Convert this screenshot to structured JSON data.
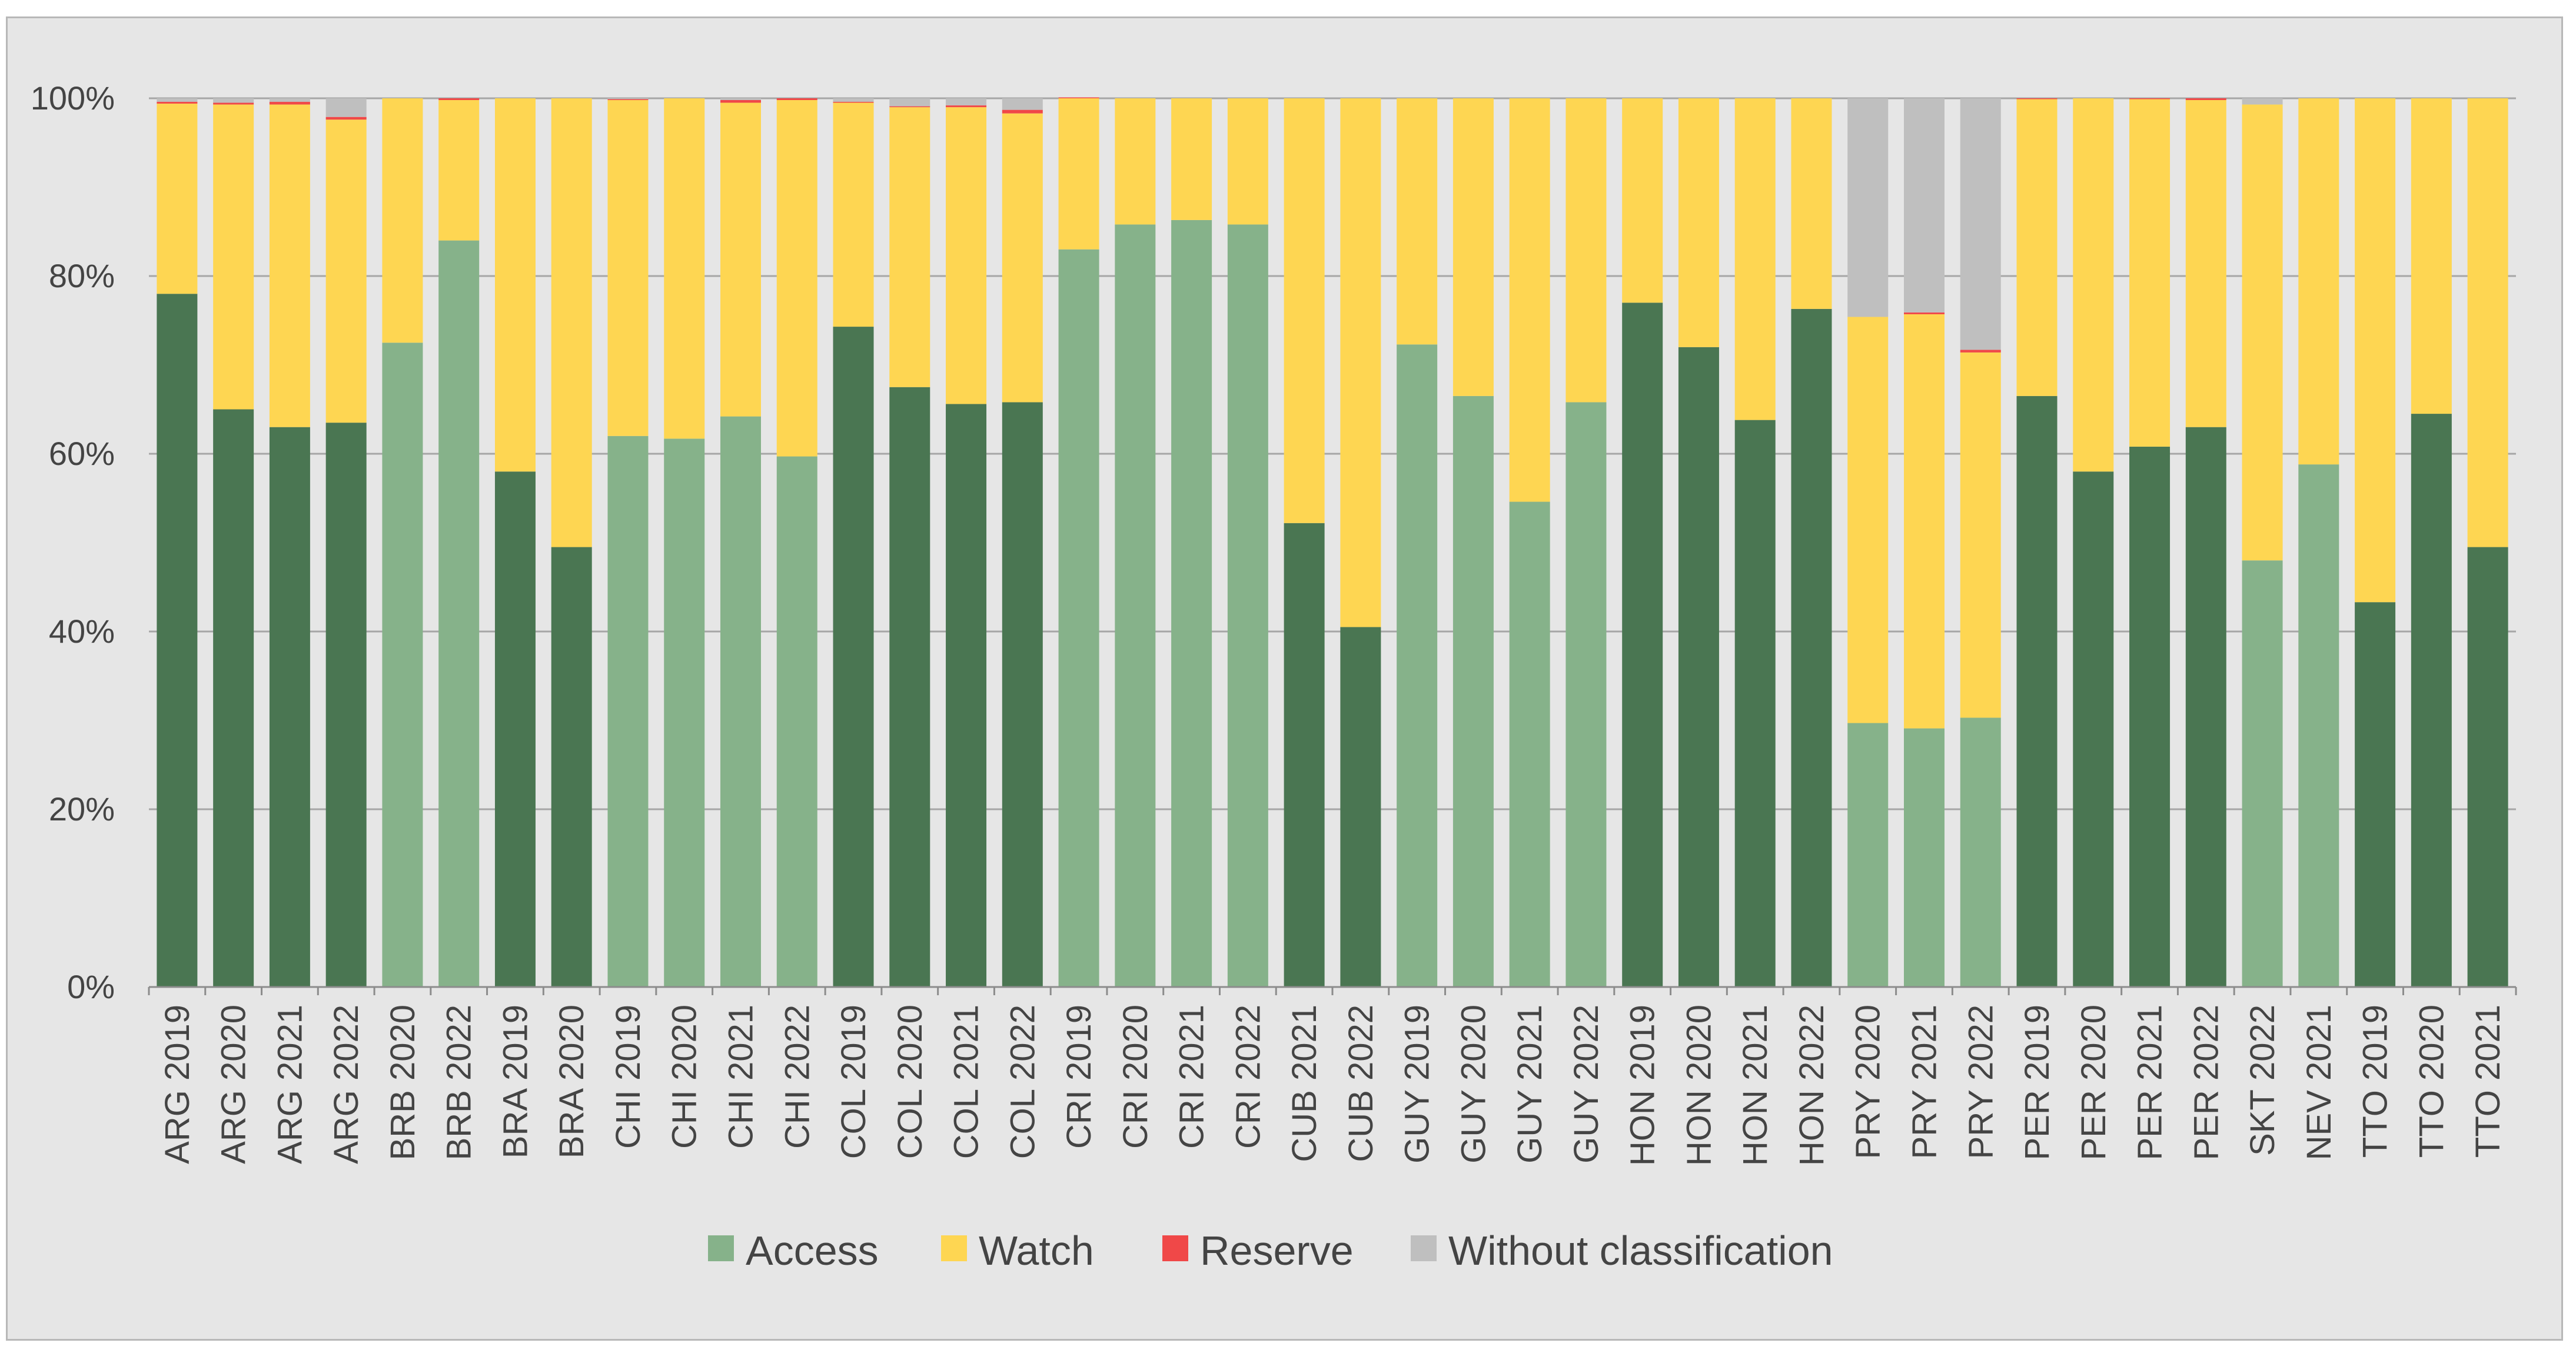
{
  "chart_data": {
    "type": "bar",
    "stacked": true,
    "percent_scale": true,
    "title": "",
    "xlabel": "",
    "ylabel": "",
    "ylim": [
      0,
      100
    ],
    "yticks": [
      "0%",
      "20%",
      "40%",
      "60%",
      "80%",
      "100%"
    ],
    "ytick_values": [
      0,
      20,
      40,
      60,
      80,
      100
    ],
    "grid": true,
    "legend_position": "bottom",
    "categories": [
      "ARG 2019",
      "ARG 2020",
      "ARG 2021",
      "ARG 2022",
      "BRB 2020",
      "BRB 2022",
      "BRA 2019",
      "BRA 2020",
      "CHI 2019",
      "CHI 2020",
      "CHI 2021",
      "CHI 2022",
      "COL 2019",
      "COL 2020",
      "COL 2021",
      "COL 2022",
      "CRI 2019",
      "CRI 2020",
      "CRI 2021",
      "CRI 2022",
      "CUB 2021",
      "CUB 2022",
      "GUY 2019",
      "GUY 2020",
      "GUY 2021",
      "GUY 2022",
      "HON 2019",
      "HON 2020",
      "HON 2021",
      "HON 2022",
      "PRY 2020",
      "PRY 2021",
      "PRY 2022",
      "PER 2019",
      "PER 2020",
      "PER 2021",
      "PER 2022",
      "SKT 2022",
      "NEV 2021",
      "TTO 2019",
      "TTO 2020",
      "TTO 2021"
    ],
    "access_shade": [
      "dark",
      "dark",
      "dark",
      "dark",
      "light",
      "light",
      "dark",
      "dark",
      "light",
      "light",
      "light",
      "light",
      "dark",
      "dark",
      "dark",
      "dark",
      "light",
      "light",
      "light",
      "light",
      "dark",
      "dark",
      "light",
      "light",
      "light",
      "light",
      "dark",
      "dark",
      "dark",
      "dark",
      "light",
      "light",
      "light",
      "dark",
      "dark",
      "dark",
      "dark",
      "light",
      "light",
      "dark",
      "dark",
      "dark"
    ],
    "series": [
      {
        "name": "Access",
        "color": "#86b28a",
        "dark_color": "#4a7652",
        "values": [
          78,
          65,
          63,
          63.5,
          72.5,
          84,
          58,
          49.5,
          62,
          61.7,
          64.2,
          59.7,
          74.3,
          67.5,
          65.6,
          65.8,
          83,
          85.8,
          86.3,
          85.8,
          52.2,
          40.5,
          72.3,
          66.5,
          54.6,
          65.8,
          77,
          72,
          63.8,
          76.3,
          29.7,
          29.1,
          30.3,
          66.5,
          58,
          60.8,
          63,
          48,
          58.8,
          43.3,
          64.5,
          49.5
        ]
      },
      {
        "name": "Watch",
        "color": "#fed652",
        "values": [
          21.4,
          34.3,
          36.3,
          34.1,
          27.5,
          15.8,
          42,
          50.5,
          37.8,
          38.3,
          35.3,
          40.1,
          25.2,
          31.5,
          33.4,
          32.5,
          17,
          14.2,
          13.7,
          14.2,
          47.8,
          59.5,
          27.7,
          33.5,
          45.4,
          34.2,
          23,
          28,
          36.2,
          23.7,
          45.7,
          46.6,
          41.1,
          33.4,
          42,
          39.1,
          36.8,
          51.3,
          41.2,
          56.7,
          35.5,
          50.5
        ]
      },
      {
        "name": "Reserve",
        "color": "#f04848",
        "values": [
          0.2,
          0.2,
          0.3,
          0.3,
          0,
          0.2,
          0,
          0,
          0.1,
          0,
          0.3,
          0.2,
          0.1,
          0.1,
          0.2,
          0.4,
          0.1,
          0,
          0,
          0,
          0,
          0,
          0,
          0,
          0,
          0,
          0,
          0,
          0,
          0,
          0,
          0.2,
          0.3,
          0.1,
          0,
          0.1,
          0.2,
          0,
          0,
          0,
          0,
          0
        ]
      },
      {
        "name": "Without classification",
        "color": "#bfbfbf",
        "values": [
          0.4,
          0.5,
          0.4,
          2.1,
          0,
          0,
          0,
          0,
          0.1,
          0,
          0.2,
          0,
          0.4,
          0.9,
          0.8,
          1.3,
          0,
          0,
          0,
          0,
          0,
          0,
          0,
          0,
          0,
          0,
          0,
          0,
          0,
          0,
          24.6,
          24.1,
          28.3,
          0,
          0,
          0,
          0,
          0.7,
          0,
          0,
          0,
          0
        ]
      }
    ],
    "legend": [
      "Access",
      "Watch",
      "Reserve",
      "Without classification"
    ]
  }
}
